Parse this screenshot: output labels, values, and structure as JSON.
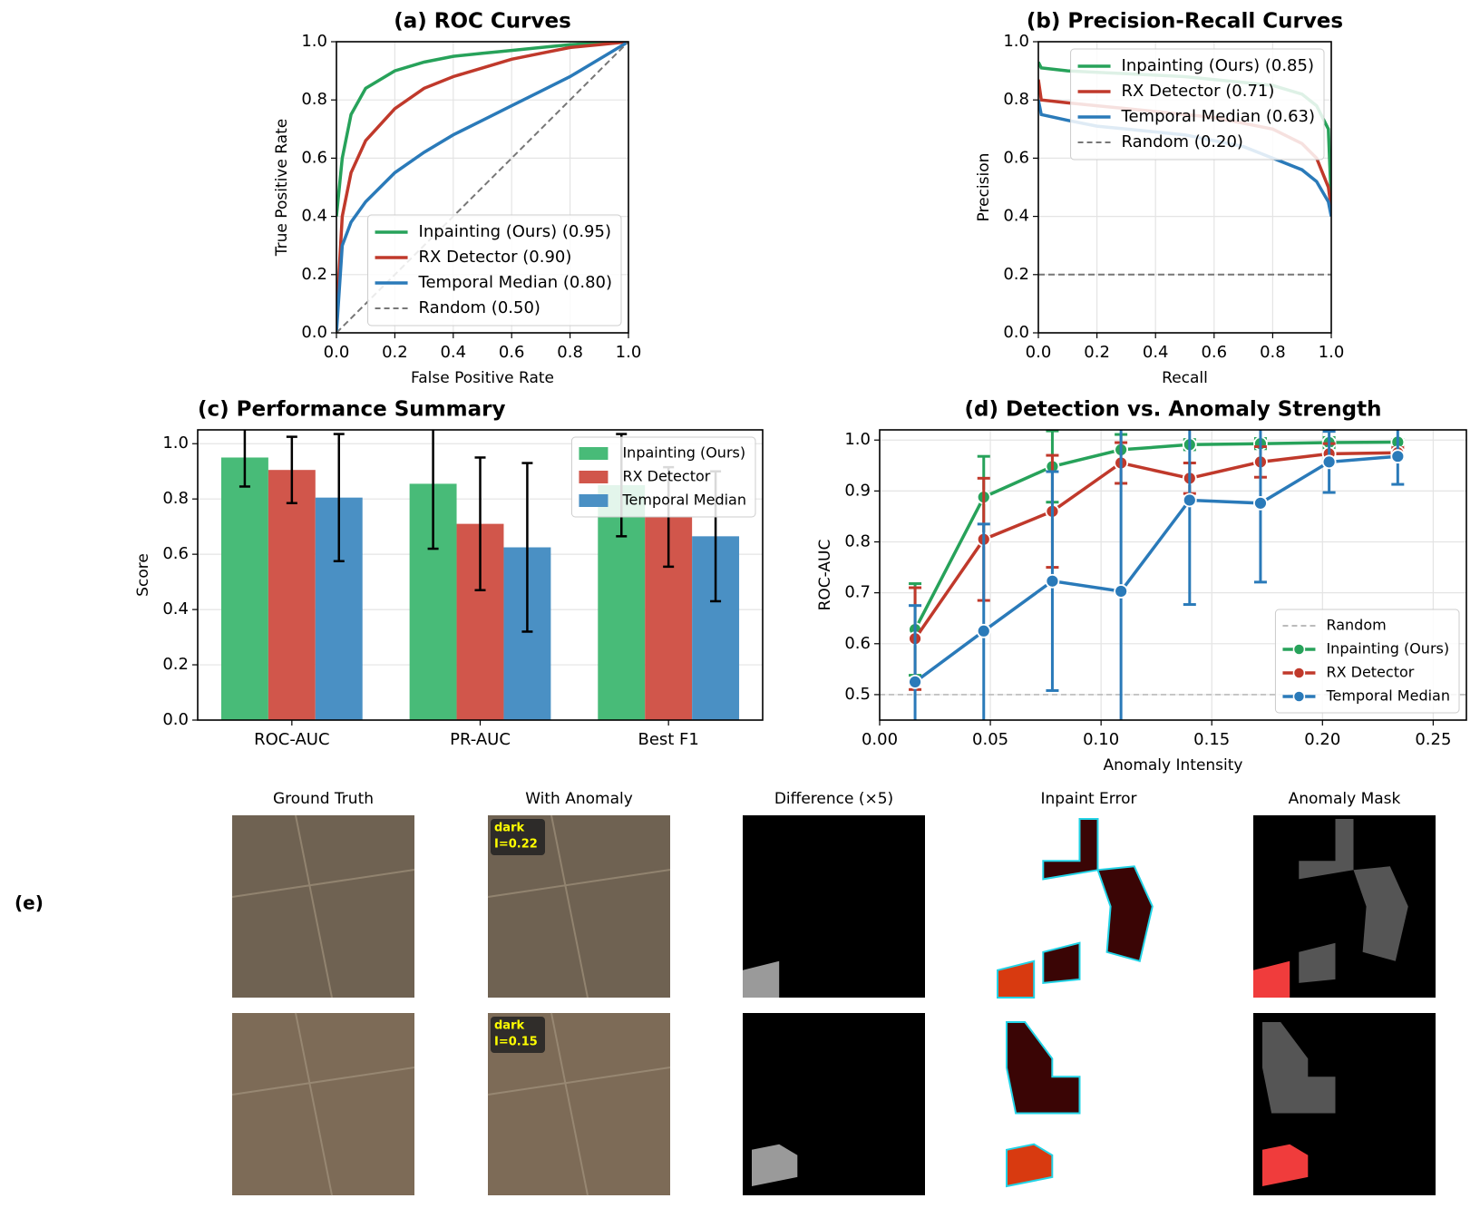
{
  "chart_data": [
    {
      "type": "line",
      "title": "(a) ROC Curves",
      "xlabel": "False Positive Rate",
      "ylabel": "True Positive Rate",
      "x": [
        0,
        0.02,
        0.05,
        0.1,
        0.2,
        0.3,
        0.4,
        0.5,
        0.6,
        0.7,
        0.8,
        0.9,
        1.0
      ],
      "series": [
        {
          "name": "Inpainting (Ours) (0.95)",
          "color": "#27a25a",
          "values": [
            0.4,
            0.6,
            0.75,
            0.84,
            0.9,
            0.93,
            0.95,
            0.96,
            0.97,
            0.98,
            0.99,
            0.995,
            1.0
          ]
        },
        {
          "name": "RX Detector (0.90)",
          "color": "#c0392b",
          "values": [
            0.05,
            0.4,
            0.55,
            0.66,
            0.77,
            0.84,
            0.88,
            0.91,
            0.94,
            0.96,
            0.98,
            0.99,
            1.0
          ]
        },
        {
          "name": "Temporal Median (0.80)",
          "color": "#2a7ab9",
          "values": [
            0,
            0.3,
            0.38,
            0.45,
            0.55,
            0.62,
            0.68,
            0.73,
            0.78,
            0.83,
            0.88,
            0.94,
            1.0
          ]
        },
        {
          "name": "Random (0.50)",
          "color": "#777777",
          "dash": true,
          "values": [
            0,
            0.02,
            0.05,
            0.1,
            0.2,
            0.3,
            0.4,
            0.5,
            0.6,
            0.7,
            0.8,
            0.9,
            1.0
          ]
        }
      ],
      "xlim": [
        0,
        1
      ],
      "ylim": [
        0,
        1
      ],
      "xticks": [
        {
          "value": 0,
          "label": "0.0"
        },
        0.2,
        0.4,
        0.6,
        0.8,
        {
          "value": 1,
          "label": "1.0"
        }
      ],
      "yticks": [
        {
          "value": 0,
          "label": "0.0"
        },
        0.2,
        0.4,
        0.6,
        0.8,
        {
          "value": 1,
          "label": "1.0"
        }
      ],
      "grid": true,
      "legend": "lower right"
    },
    {
      "type": "line",
      "title": "(b) Precision-Recall Curves",
      "xlabel": "Recall",
      "ylabel": "Precision",
      "x": [
        0,
        0.01,
        0.1,
        0.2,
        0.3,
        0.4,
        0.5,
        0.6,
        0.7,
        0.8,
        0.9,
        0.95,
        0.99,
        1.0
      ],
      "series": [
        {
          "name": "Inpainting (Ours) (0.85)",
          "color": "#27a25a",
          "values": [
            0.93,
            0.91,
            0.9,
            0.895,
            0.89,
            0.885,
            0.88,
            0.87,
            0.86,
            0.85,
            0.82,
            0.78,
            0.7,
            0.45
          ]
        },
        {
          "name": "RX Detector (0.71)",
          "color": "#c0392b",
          "values": [
            0.87,
            0.8,
            0.79,
            0.78,
            0.77,
            0.76,
            0.75,
            0.74,
            0.72,
            0.7,
            0.65,
            0.6,
            0.5,
            0.43
          ]
        },
        {
          "name": "Temporal Median (0.63)",
          "color": "#2a7ab9",
          "values": [
            0.8,
            0.75,
            0.73,
            0.71,
            0.7,
            0.69,
            0.68,
            0.66,
            0.64,
            0.6,
            0.56,
            0.52,
            0.45,
            0.4
          ]
        },
        {
          "name": "Random (0.20)",
          "color": "#777777",
          "dash": true,
          "values": [
            0.2,
            0.2,
            0.2,
            0.2,
            0.2,
            0.2,
            0.2,
            0.2,
            0.2,
            0.2,
            0.2,
            0.2,
            0.2,
            0.2
          ]
        }
      ],
      "xlim": [
        0,
        1
      ],
      "ylim": [
        0,
        1
      ],
      "xticks": [
        {
          "value": 0,
          "label": "0.0"
        },
        0.2,
        0.4,
        0.6,
        0.8,
        {
          "value": 1,
          "label": "1.0"
        }
      ],
      "yticks": [
        {
          "value": 0,
          "label": "0.0"
        },
        0.2,
        0.4,
        0.6,
        0.8,
        {
          "value": 1,
          "label": "1.0"
        }
      ],
      "grid": true,
      "legend": "upper right"
    },
    {
      "type": "bar",
      "title": "(c) Performance Summary",
      "ylabel": "Score",
      "categories": [
        "ROC-AUC",
        "PR-AUC",
        "Best F1"
      ],
      "series": [
        {
          "name": "Inpainting (Ours)",
          "color": "#48bb78",
          "values": [
            0.95,
            0.855,
            0.85
          ],
          "errors": [
            0.105,
            0.235,
            0.185
          ]
        },
        {
          "name": "RX Detector",
          "color": "#d1564b",
          "values": [
            0.905,
            0.71,
            0.735
          ],
          "errors": [
            0.12,
            0.24,
            0.18
          ]
        },
        {
          "name": "Temporal Median",
          "color": "#4a90c4",
          "values": [
            0.805,
            0.625,
            0.665
          ],
          "errors": [
            0.23,
            0.305,
            0.235
          ]
        }
      ],
      "ylim": [
        0,
        1.05
      ],
      "yticks": [
        {
          "value": 0,
          "label": "0.0"
        },
        0.2,
        0.4,
        0.6,
        0.8,
        {
          "value": 1,
          "label": "1.0"
        }
      ],
      "grid": true,
      "legend": "upper right"
    },
    {
      "type": "line",
      "title": "(d) Detection vs. Anomaly Strength",
      "xlabel": "Anomaly Intensity",
      "ylabel": "ROC-AUC",
      "x": [
        0.016,
        0.047,
        0.078,
        0.109,
        0.14,
        0.172,
        0.203,
        0.234
      ],
      "hline": {
        "name": "Random",
        "value": 0.5,
        "color": "#bbbbbb"
      },
      "series": [
        {
          "name": "Inpainting (Ours)",
          "color": "#27a25a",
          "values": [
            0.628,
            0.888,
            0.948,
            0.981,
            0.991,
            0.993,
            0.995,
            0.996
          ],
          "errors": [
            0.09,
            0.08,
            0.07,
            0.03,
            0.01,
            0.01,
            0.01,
            0.005
          ]
        },
        {
          "name": "RX Detector",
          "color": "#c0392b",
          "values": [
            0.61,
            0.805,
            0.86,
            0.955,
            0.925,
            0.957,
            0.973,
            0.975
          ],
          "errors": [
            0.1,
            0.12,
            0.11,
            0.04,
            0.03,
            0.03,
            0.02,
            0.01
          ]
        },
        {
          "name": "Temporal Median",
          "color": "#2a7ab9",
          "values": [
            0.525,
            0.625,
            0.723,
            0.703,
            0.882,
            0.876,
            0.957,
            0.968
          ],
          "errors": [
            0.15,
            0.21,
            0.215,
            0.35,
            0.205,
            0.155,
            0.06,
            0.055
          ]
        }
      ],
      "markers": true,
      "xlim": [
        0,
        0.265
      ],
      "ylim": [
        0.45,
        1.02
      ],
      "xticks": [
        {
          "value": 0,
          "label": "0.00"
        },
        0.05,
        {
          "value": 0.1,
          "label": "0.10"
        },
        0.15,
        {
          "value": 0.2,
          "label": "0.20"
        },
        0.25
      ],
      "yticks": [
        0.5,
        0.6,
        0.7,
        0.8,
        0.9,
        {
          "value": 1,
          "label": "1.0"
        }
      ],
      "grid": true,
      "legend": "lower right"
    }
  ],
  "panel_e": {
    "label": "(e)",
    "columns": [
      "Ground Truth",
      "With Anomaly",
      "Difference (×5)",
      "Inpaint Error",
      "Anomaly Mask"
    ],
    "annotations": [
      {
        "type": "dark",
        "intensity": "I=0.22"
      },
      {
        "type": "dark",
        "intensity": "I=0.15"
      }
    ]
  }
}
